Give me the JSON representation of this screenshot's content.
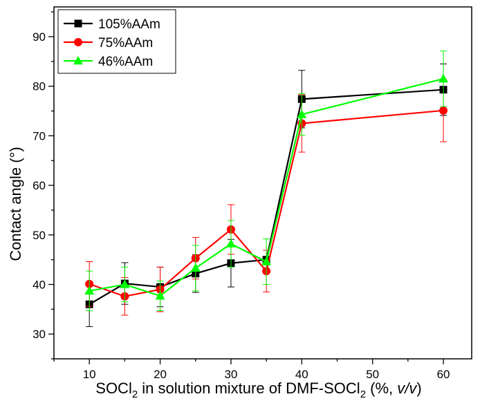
{
  "chart_data": {
    "type": "line",
    "xlabel": {
      "prefix": "SOCl",
      "sub1": "2",
      "middle": " in solution mixture of DMF-SOCl",
      "sub2": "2",
      "suffix_open": " (%, ",
      "italic": "v/v",
      "suffix_close": ")"
    },
    "ylabel": "Contact angle (°)",
    "xlim": [
      5,
      64
    ],
    "ylim": [
      25,
      96
    ],
    "xticks": [
      10,
      20,
      30,
      40,
      50,
      60
    ],
    "yticks": [
      30,
      40,
      50,
      60,
      70,
      80,
      90
    ],
    "x_minor_step": 5,
    "y_minor_step": 5,
    "grid": false,
    "legend_position": "top-left",
    "series": [
      {
        "name": "105%AAm",
        "color": "#000000",
        "marker": "square",
        "x": [
          10,
          15,
          20,
          25,
          30,
          35,
          40,
          60
        ],
        "y": [
          36.0,
          40.2,
          39.5,
          42.2,
          44.3,
          45.0,
          77.4,
          79.3
        ],
        "err": [
          4.5,
          4.2,
          4.0,
          3.8,
          4.8,
          0,
          5.8,
          5.2
        ]
      },
      {
        "name": "75%AAm",
        "color": "#ff0000",
        "marker": "circle",
        "x": [
          10,
          15,
          20,
          25,
          30,
          35,
          40,
          60
        ],
        "y": [
          40.1,
          37.6,
          39.0,
          45.3,
          51.1,
          42.7,
          72.5,
          75.1
        ],
        "err": [
          4.5,
          3.8,
          4.5,
          4.2,
          5.0,
          4.2,
          5.8,
          6.3
        ]
      },
      {
        "name": "46%AAm",
        "color": "#00ff00",
        "marker": "triangle",
        "x": [
          10,
          15,
          20,
          25,
          30,
          35,
          40,
          60
        ],
        "y": [
          38.7,
          40.0,
          37.7,
          43.3,
          48.2,
          44.6,
          74.3,
          81.5
        ],
        "err": [
          4.0,
          3.5,
          3.0,
          4.6,
          4.7,
          4.6,
          4.2,
          5.6
        ]
      }
    ]
  }
}
